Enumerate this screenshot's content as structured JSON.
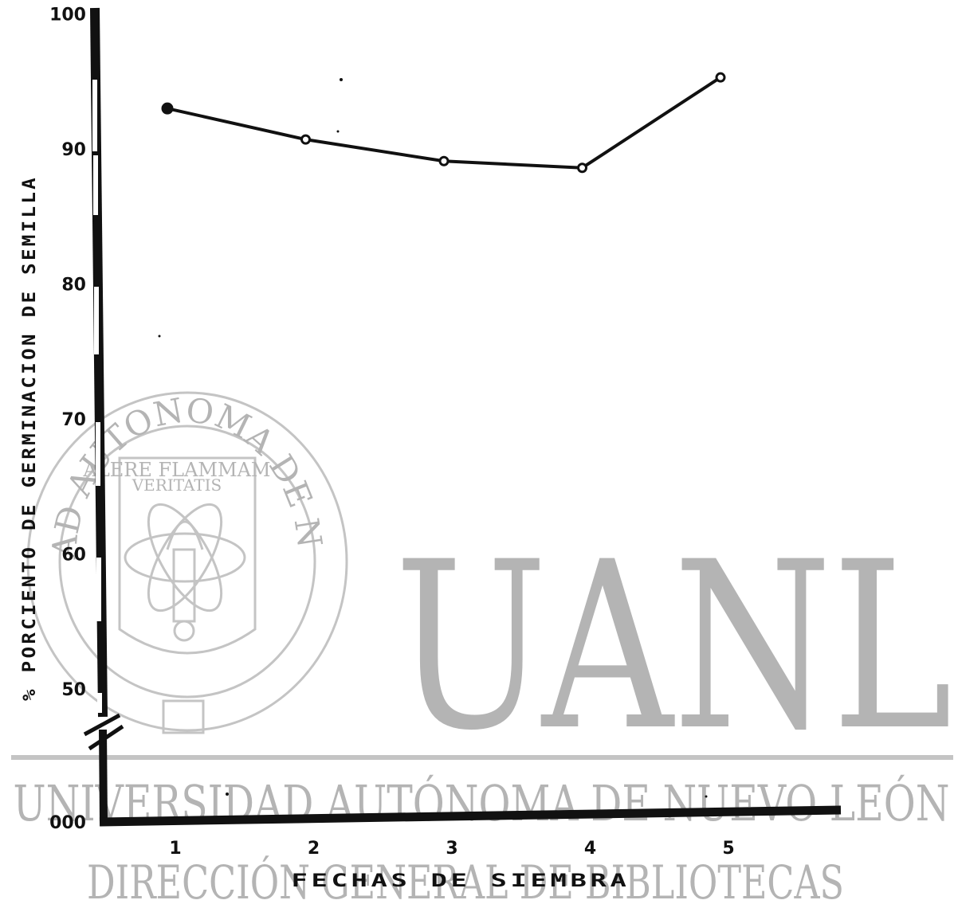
{
  "chart_data": {
    "type": "line",
    "title": "",
    "xlabel": "FECHAS DE SIEMBRA",
    "ylabel": "% PORCIENTO DE GERMINACION DE SEMILLA",
    "x": [
      1,
      2,
      3,
      4,
      5
    ],
    "series": [
      {
        "values": [
          93.0,
          90.7,
          89.1,
          88.6,
          95.3
        ]
      }
    ],
    "y_ticks": [
      "000",
      "50",
      "60",
      "70",
      "80",
      "90",
      "100"
    ],
    "x_ticks": [
      "1",
      "2",
      "3",
      "4",
      "5"
    ],
    "ylim": [
      0,
      100
    ],
    "axis_break": true,
    "grid": false
  },
  "watermark": {
    "big": "UANL",
    "university": "UNIVERSIDAD AUTÓNOMA DE NUEVO LEÓN",
    "direccion": "DIRECCIÓN GENERAL DE BIBLIOTECAS",
    "seal_ring": "UNIVERSIDAD AUTONOMA DE NUEVO LEON",
    "motto_1": "ALERE FLAMMAM",
    "motto_2": "VERITATIS",
    "color": "#b4b4b4"
  },
  "colors": {
    "ink": "#111111",
    "watermark": "#b4b4b4"
  }
}
